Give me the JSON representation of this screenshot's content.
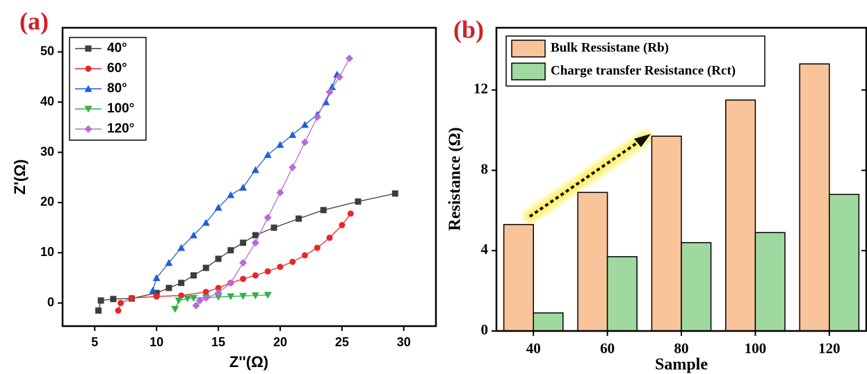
{
  "chart_data": [
    {
      "type": "line",
      "panel": "(a)",
      "x_label": "Z''(Ω)",
      "y_label": "Z'(Ω)",
      "xlim": [
        2.4,
        32.6
      ],
      "xticks": [
        5,
        10,
        15,
        20,
        25,
        30
      ],
      "ylim": [
        -4.6,
        54.8
      ],
      "yticks": [
        0,
        10,
        20,
        30,
        40,
        50
      ],
      "legend": "top-left",
      "series": [
        {
          "name": "40°",
          "color": "#3d3d3d",
          "marker": "square",
          "x": [
            5.3,
            5.5,
            6.5,
            8,
            10,
            11,
            12,
            13,
            14,
            15,
            16,
            17,
            18,
            19.5,
            21.5,
            23.5,
            26.3,
            29.3
          ],
          "values": [
            -1.5,
            0.5,
            0.8,
            0.9,
            2,
            3,
            4,
            5.5,
            7,
            8.8,
            10.5,
            12,
            13.5,
            15,
            16.8,
            18.5,
            20.2,
            21.8
          ]
        },
        {
          "name": "60°",
          "color": "#e8262a",
          "marker": "circle",
          "x": [
            6.9,
            7.1,
            8,
            10,
            12,
            14,
            15,
            16,
            17,
            18,
            19,
            20,
            21,
            22,
            23,
            24,
            25,
            25.7
          ],
          "values": [
            -1.5,
            0,
            1,
            1.3,
            1.5,
            2.2,
            3,
            4,
            4.8,
            5.5,
            6.3,
            7.2,
            8.2,
            9.5,
            11,
            13,
            15.5,
            17.8
          ]
        },
        {
          "name": "80°",
          "color": "#1f5fd6",
          "marker": "triangle-up",
          "x": [
            9.7,
            10,
            11,
            12,
            13,
            14,
            15,
            16,
            17,
            18,
            19,
            20,
            21,
            22,
            23,
            23.7,
            24.2,
            24.6
          ],
          "values": [
            2.5,
            5,
            8,
            11,
            13.5,
            16,
            19,
            21.5,
            23,
            26.5,
            29.5,
            31.5,
            33.5,
            35.5,
            37.5,
            40,
            43,
            45.5
          ]
        },
        {
          "name": "100°",
          "color": "#2eb24a",
          "marker": "triangle-down",
          "x": [
            11.5,
            11.8,
            12.5,
            13,
            14,
            15,
            16,
            17,
            18,
            19
          ],
          "values": [
            -1.2,
            0.5,
            0.9,
            1,
            1.1,
            1.2,
            1.3,
            1.4,
            1.5,
            1.6
          ]
        },
        {
          "name": "120°",
          "color": "#b66bd9",
          "marker": "diamond",
          "x": [
            13.2,
            13.5,
            14,
            15,
            16,
            17,
            18,
            19,
            20,
            21,
            22,
            23,
            24,
            24.8,
            25.6
          ],
          "values": [
            -0.5,
            0.5,
            1,
            2,
            4,
            8,
            12,
            17,
            22,
            27,
            32,
            37,
            42,
            45,
            48.7
          ]
        }
      ]
    },
    {
      "type": "bar",
      "panel": "(b)",
      "x_label": "Sample",
      "y_label": "Resistance (Ω)",
      "categories": [
        "40",
        "60",
        "80",
        "100",
        "120"
      ],
      "ylim": [
        0,
        15.1
      ],
      "yticks": [
        0,
        4,
        8,
        12
      ],
      "legend": "top-left",
      "series": [
        {
          "name": "Bulk Ressistane (Rb)",
          "color": "#f9c49a",
          "values": [
            5.3,
            6.9,
            9.7,
            11.5,
            13.3
          ]
        },
        {
          "name": "Charge transfer Resistance (Rct)",
          "color": "#9fd9a0",
          "values": [
            0.9,
            3.7,
            4.4,
            4.9,
            6.8
          ]
        }
      ]
    }
  ]
}
